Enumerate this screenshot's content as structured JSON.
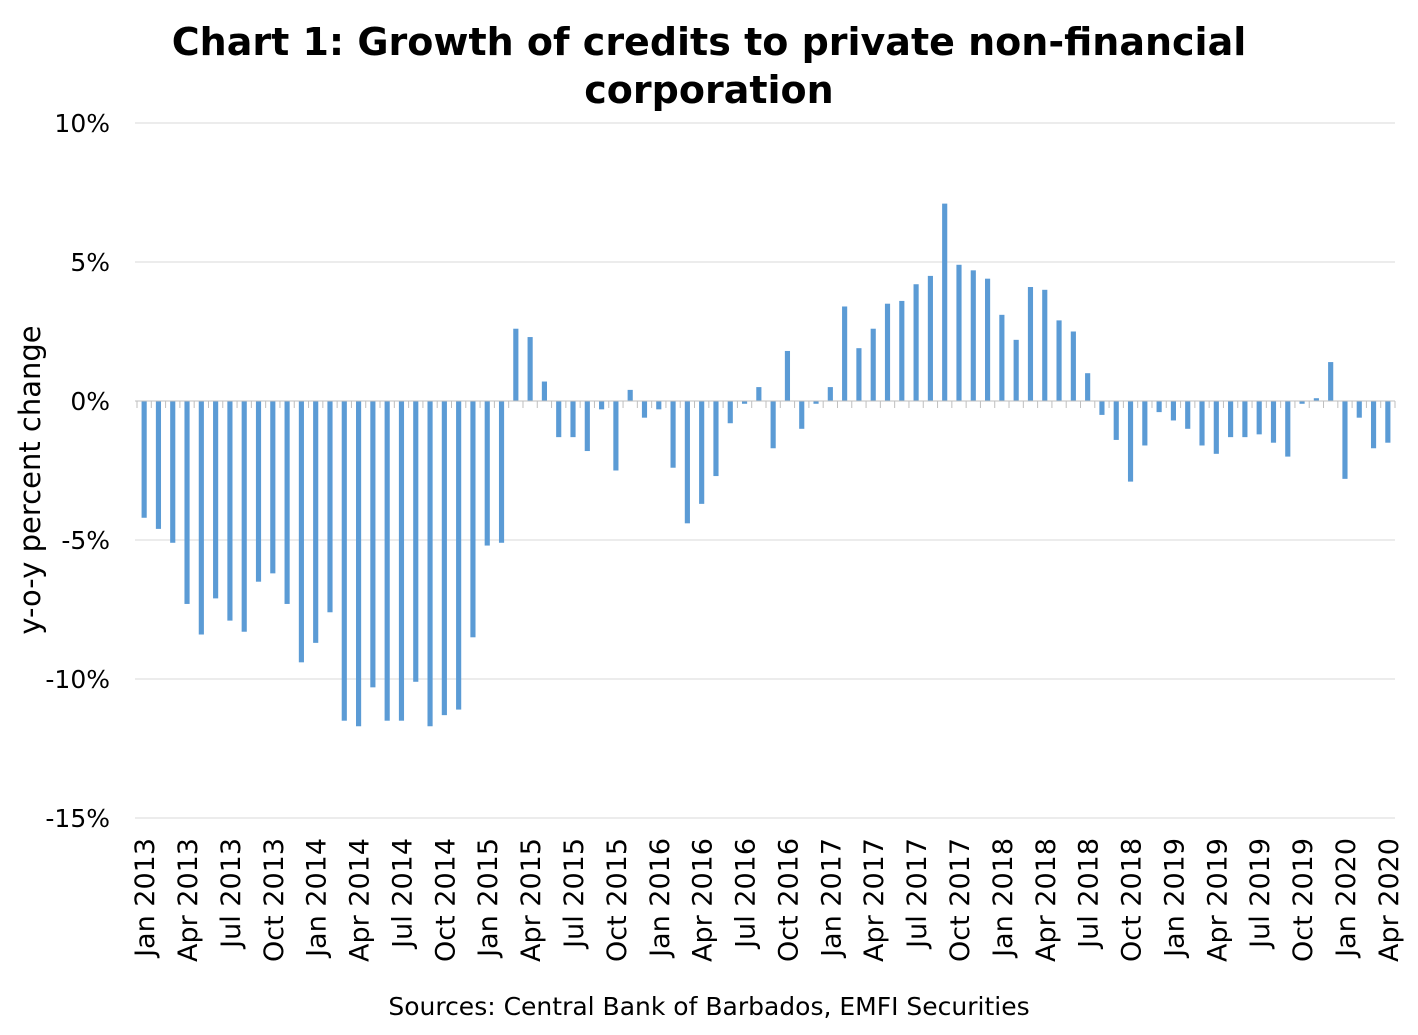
{
  "chart_data": {
    "type": "bar",
    "title_lines": [
      "Chart 1: Growth of credits to private non-financial",
      "corporation"
    ],
    "ylabel": "y-o-y percent change",
    "xlabel": "",
    "source": "Sources: Central Bank of Barbados, EMFI Securities",
    "ylim": [
      -15,
      10
    ],
    "yticks": [
      10,
      5,
      0,
      -5,
      -10,
      -15
    ],
    "ytick_labels": [
      "10%",
      "5%",
      "0%",
      "-5%",
      "-10%",
      "-15%"
    ],
    "grid": true,
    "legend": "none",
    "bar_color": "#5b9bd5",
    "x_tick_labels": [
      "Jan 2013",
      "Apr 2013",
      "Jul 2013",
      "Oct 2013",
      "Jan 2014",
      "Apr 2014",
      "Jul 2014",
      "Oct 2014",
      "Jan 2015",
      "Apr 2015",
      "Jul 2015",
      "Oct 2015",
      "Jan 2016",
      "Apr 2016",
      "Jul 2016",
      "Oct 2016",
      "Jan 2017",
      "Apr 2017",
      "Jul 2017",
      "Oct 2017",
      "Jan 2018",
      "Apr 2018",
      "Jul 2018",
      "Oct 2018",
      "Jan 2019",
      "Apr 2019",
      "Jul 2019",
      "Oct 2019",
      "Jan 2020",
      "Apr 2020"
    ],
    "x_tick_every": 3,
    "series": [
      {
        "values": [
          -4.2,
          -4.6,
          -5.1,
          -7.3,
          -8.4,
          -7.1,
          -7.9,
          -8.3,
          -6.5,
          -6.2,
          -7.3,
          -9.4,
          -8.7,
          -7.6,
          -11.5,
          -11.7,
          -10.3,
          -11.5,
          -11.5,
          -10.1,
          -11.7,
          -11.3,
          -11.1,
          -8.5,
          -5.2,
          -5.1,
          2.6,
          2.3,
          0.7,
          -1.3,
          -1.3,
          -1.8,
          -0.3,
          -2.5,
          0.4,
          -0.6,
          -0.3,
          -2.4,
          -4.4,
          -3.7,
          -2.7,
          -0.8,
          -0.1,
          0.5,
          -1.7,
          1.8,
          -1.0,
          -0.1,
          0.5,
          3.4,
          1.9,
          2.6,
          3.5,
          3.6,
          4.2,
          4.5,
          7.1,
          4.9,
          4.7,
          4.4,
          3.1,
          2.2,
          4.1,
          4.0,
          2.9,
          2.5,
          1.0,
          -0.5,
          -1.4,
          -2.9,
          -1.6,
          -0.4,
          -0.7,
          -1.0,
          -1.6,
          -1.9,
          -1.3,
          -1.3,
          -1.2,
          -1.5,
          -2.0,
          -0.1,
          0.1,
          1.4,
          -2.8,
          -0.6,
          -1.7,
          -1.5
        ]
      }
    ]
  }
}
